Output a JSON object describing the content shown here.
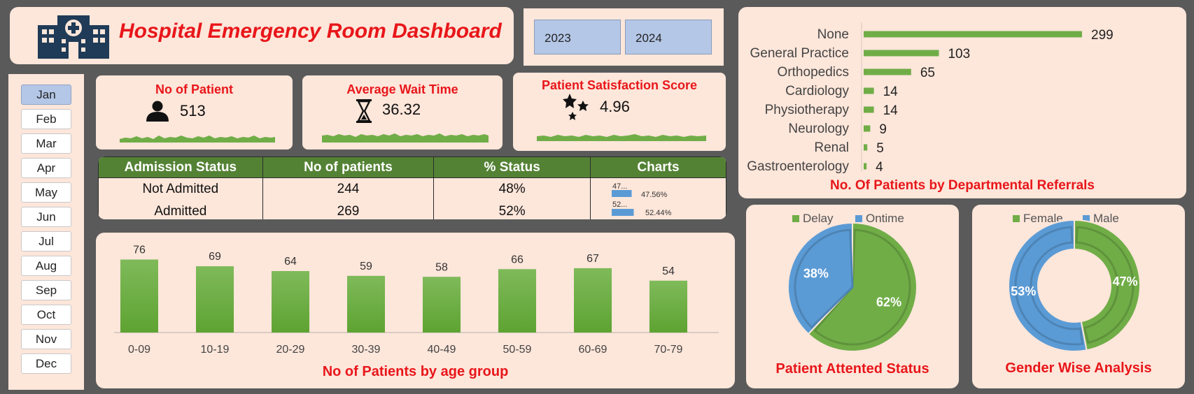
{
  "header": {
    "title": "Hospital Emergency Room Dashboard"
  },
  "years": [
    "2023",
    "2024"
  ],
  "months": [
    "Jan",
    "Feb",
    "Mar",
    "Apr",
    "May",
    "Jun",
    "Jul",
    "Aug",
    "Sep",
    "Oct",
    "Nov",
    "Dec"
  ],
  "selected_month": "Jan",
  "kpis": {
    "patients": {
      "title": "No of Patient",
      "value": "513"
    },
    "wait": {
      "title": "Average Wait Time",
      "value": "36.32"
    },
    "satisfaction": {
      "title": "Patient Satisfaction Score",
      "value": "4.96"
    }
  },
  "admission_table": {
    "headers": [
      "Admission Status",
      "No of patients",
      "% Status",
      "Charts"
    ],
    "rows": [
      {
        "status": "Not Admitted",
        "patients": "244",
        "pct": "48%",
        "bar_label": "47...",
        "bar_value": "47.56%",
        "bar_fraction": 0.4756
      },
      {
        "status": "Admitted",
        "patients": "269",
        "pct": "52%",
        "bar_label": "52...",
        "bar_value": "52.44%",
        "bar_fraction": 0.5244
      }
    ]
  },
  "colors": {
    "green": "#70ad47",
    "blue": "#5b9bd5",
    "red": "#e8161a",
    "table_header": "#548235",
    "card": "#fde6da"
  },
  "chart_data": [
    {
      "type": "bar",
      "title": "No of Patients by age group",
      "categories": [
        "0-09",
        "10-19",
        "20-29",
        "30-39",
        "40-49",
        "50-59",
        "60-69",
        "70-79"
      ],
      "values": [
        76,
        69,
        64,
        59,
        58,
        66,
        67,
        54
      ],
      "ylim": [
        0,
        80
      ]
    },
    {
      "type": "bar",
      "orientation": "horizontal",
      "title": "No. Of Patients by Departmental Referrals",
      "categories": [
        "None",
        "General Practice",
        "Orthopedics",
        "Cardiology",
        "Physiotherapy",
        "Neurology",
        "Renal",
        "Gastroenterology"
      ],
      "values": [
        299,
        103,
        65,
        14,
        14,
        9,
        5,
        4
      ]
    },
    {
      "type": "pie",
      "title": "Patient Attented Status",
      "labels": [
        "Delay",
        "Ontime"
      ],
      "values": [
        62,
        38
      ],
      "value_labels": [
        "62%",
        "38%"
      ],
      "legend": "top"
    },
    {
      "type": "pie",
      "style": "donut",
      "title": "Gender Wise Analysis",
      "labels": [
        "Female",
        "Male"
      ],
      "values": [
        47,
        53
      ],
      "value_labels": [
        "47%",
        "53%"
      ],
      "legend": "top"
    }
  ]
}
